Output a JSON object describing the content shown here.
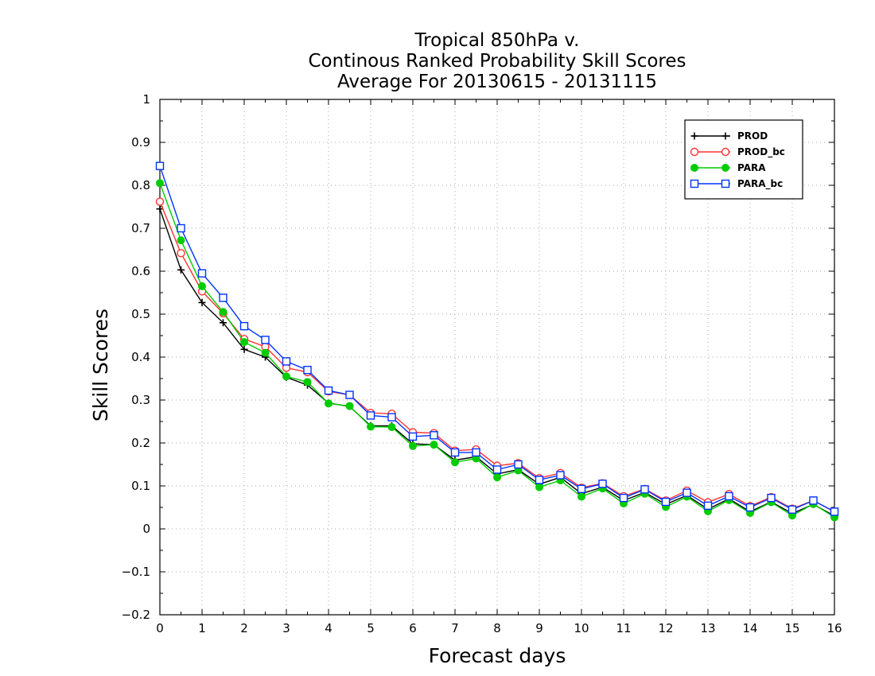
{
  "chart_data": {
    "type": "line",
    "title_lines": [
      "Tropical 850hPa v.",
      "Continous Ranked Probability Skill Scores",
      "Average For 20130615 - 20131115"
    ],
    "xlabel": "Forecast days",
    "ylabel": "Skill Scores",
    "xlim": [
      0,
      16
    ],
    "ylim": [
      -0.2,
      1
    ],
    "x_ticks": [
      "0",
      "1",
      "2",
      "3",
      "4",
      "5",
      "6",
      "7",
      "8",
      "9",
      "10",
      "11",
      "12",
      "13",
      "14",
      "15",
      "16"
    ],
    "y_ticks": [
      "−0.2",
      "−0.1",
      "0",
      "0.1",
      "0.2",
      "0.3",
      "0.4",
      "0.5",
      "0.6",
      "0.7",
      "0.8",
      "0.9",
      "1"
    ],
    "grid": true,
    "legend_position": "top-right",
    "x": [
      0,
      0.5,
      1,
      1.5,
      2,
      2.5,
      3,
      3.5,
      4,
      4.5,
      5,
      5.5,
      6,
      6.5,
      7,
      7.5,
      8,
      8.5,
      9,
      9.5,
      10,
      10.5,
      11,
      11.5,
      12,
      12.5,
      13,
      13.5,
      14,
      14.5,
      15,
      15.5,
      16
    ],
    "series": [
      {
        "name": "PROD",
        "color": "#000000",
        "marker": "plus",
        "values": [
          0.745,
          0.603,
          0.527,
          0.48,
          0.418,
          0.4,
          0.353,
          0.335,
          0.293,
          0.285,
          0.24,
          0.24,
          0.198,
          0.196,
          0.16,
          0.168,
          0.128,
          0.138,
          0.104,
          0.12,
          0.082,
          0.097,
          0.066,
          0.085,
          0.057,
          0.078,
          0.046,
          0.07,
          0.04,
          0.063,
          0.036,
          0.057,
          0.03
        ]
      },
      {
        "name": "PROD_bc",
        "color": "#ff3333",
        "marker": "open-circle",
        "values": [
          0.762,
          0.642,
          0.553,
          0.502,
          0.442,
          0.424,
          0.375,
          0.365,
          0.32,
          0.312,
          0.27,
          0.268,
          0.225,
          0.223,
          0.182,
          0.185,
          0.147,
          0.153,
          0.118,
          0.13,
          0.096,
          0.106,
          0.076,
          0.093,
          0.066,
          0.089,
          0.062,
          0.081,
          0.053,
          0.074,
          0.047,
          0.066,
          0.04
        ]
      },
      {
        "name": "PARA",
        "color": "#00cc00",
        "marker": "filled-circle",
        "values": [
          0.805,
          0.672,
          0.565,
          0.505,
          0.435,
          0.41,
          0.355,
          0.342,
          0.292,
          0.286,
          0.238,
          0.237,
          0.193,
          0.196,
          0.155,
          0.164,
          0.12,
          0.136,
          0.097,
          0.113,
          0.075,
          0.094,
          0.059,
          0.082,
          0.051,
          0.075,
          0.041,
          0.067,
          0.037,
          0.062,
          0.031,
          0.058,
          0.027
        ]
      },
      {
        "name": "PARA_bc",
        "color": "#0033ff",
        "marker": "open-square",
        "values": [
          0.845,
          0.7,
          0.595,
          0.538,
          0.472,
          0.44,
          0.39,
          0.37,
          0.322,
          0.312,
          0.264,
          0.26,
          0.215,
          0.218,
          0.178,
          0.178,
          0.138,
          0.15,
          0.114,
          0.125,
          0.093,
          0.105,
          0.072,
          0.092,
          0.063,
          0.084,
          0.054,
          0.076,
          0.05,
          0.072,
          0.045,
          0.066,
          0.04
        ]
      }
    ]
  }
}
